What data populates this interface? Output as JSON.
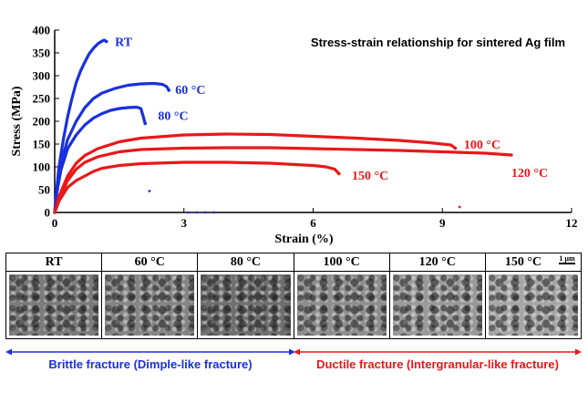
{
  "chart_data": {
    "type": "scatter",
    "title": "Stress-strain relationship for sintered Ag film",
    "xlabel": "Strain (%)",
    "ylabel": "Stress (MPa)",
    "xlim": [
      0,
      12
    ],
    "ylim": [
      0,
      400
    ],
    "xticks": [
      "0",
      "3",
      "6",
      "9",
      "12"
    ],
    "yticks": [
      "0",
      "50",
      "100",
      "150",
      "200",
      "250",
      "300",
      "350",
      "400"
    ],
    "grid": false,
    "series": [
      {
        "name": "RT",
        "color": "#1a2fe0",
        "points": [
          [
            0,
            0
          ],
          [
            0.05,
            55
          ],
          [
            0.1,
            100
          ],
          [
            0.2,
            160
          ],
          [
            0.3,
            210
          ],
          [
            0.4,
            250
          ],
          [
            0.5,
            285
          ],
          [
            0.6,
            310
          ],
          [
            0.7,
            330
          ],
          [
            0.8,
            348
          ],
          [
            0.9,
            360
          ],
          [
            1.0,
            370
          ],
          [
            1.1,
            376
          ],
          [
            1.15,
            378
          ],
          [
            1.2,
            375
          ]
        ]
      },
      {
        "name": "60 °C",
        "color": "#1a2fe0",
        "points": [
          [
            0,
            0
          ],
          [
            0.05,
            50
          ],
          [
            0.15,
            110
          ],
          [
            0.3,
            160
          ],
          [
            0.5,
            200
          ],
          [
            0.7,
            230
          ],
          [
            0.9,
            250
          ],
          [
            1.1,
            262
          ],
          [
            1.4,
            272
          ],
          [
            1.7,
            279
          ],
          [
            2.0,
            282
          ],
          [
            2.3,
            283
          ],
          [
            2.5,
            281
          ],
          [
            2.6,
            276
          ],
          [
            2.65,
            268
          ]
        ]
      },
      {
        "name": "80 °C",
        "color": "#1a2fe0",
        "points": [
          [
            0,
            0
          ],
          [
            0.05,
            45
          ],
          [
            0.15,
            95
          ],
          [
            0.3,
            140
          ],
          [
            0.5,
            170
          ],
          [
            0.7,
            192
          ],
          [
            0.9,
            207
          ],
          [
            1.1,
            217
          ],
          [
            1.3,
            224
          ],
          [
            1.5,
            228
          ],
          [
            1.7,
            230
          ],
          [
            1.9,
            231
          ],
          [
            2.0,
            228
          ],
          [
            2.05,
            212
          ],
          [
            2.1,
            195
          ]
        ]
      },
      {
        "name": "100 °C",
        "color": "#e8181a",
        "points": [
          [
            0,
            0
          ],
          [
            0.1,
            35
          ],
          [
            0.3,
            80
          ],
          [
            0.5,
            108
          ],
          [
            0.7,
            125
          ],
          [
            1.0,
            140
          ],
          [
            1.5,
            155
          ],
          [
            2.0,
            163
          ],
          [
            3.0,
            170
          ],
          [
            4.0,
            172
          ],
          [
            5.0,
            171
          ],
          [
            6.0,
            167
          ],
          [
            7.0,
            163
          ],
          [
            8.0,
            158
          ],
          [
            8.7,
            153
          ],
          [
            9.0,
            150
          ],
          [
            9.2,
            148
          ],
          [
            9.3,
            141
          ]
        ]
      },
      {
        "name": "120 °C",
        "color": "#e8181a",
        "points": [
          [
            0,
            0
          ],
          [
            0.1,
            30
          ],
          [
            0.3,
            70
          ],
          [
            0.5,
            95
          ],
          [
            0.7,
            110
          ],
          [
            1.0,
            122
          ],
          [
            1.5,
            133
          ],
          [
            2.0,
            138
          ],
          [
            3.0,
            141
          ],
          [
            4.0,
            142
          ],
          [
            5.0,
            142
          ],
          [
            6.0,
            140
          ],
          [
            7.0,
            138
          ],
          [
            8.0,
            136
          ],
          [
            9.0,
            133
          ],
          [
            10.0,
            130
          ],
          [
            10.6,
            126
          ]
        ]
      },
      {
        "name": "150 °C",
        "color": "#e8181a",
        "points": [
          [
            0,
            0
          ],
          [
            0.1,
            25
          ],
          [
            0.3,
            55
          ],
          [
            0.5,
            70
          ],
          [
            0.7,
            80
          ],
          [
            0.9,
            90
          ],
          [
            1.1,
            97
          ],
          [
            1.5,
            103
          ],
          [
            2.0,
            107
          ],
          [
            3.0,
            110
          ],
          [
            4.0,
            110
          ],
          [
            5.0,
            108
          ],
          [
            6.0,
            103
          ],
          [
            6.3,
            100
          ],
          [
            6.5,
            95
          ],
          [
            6.6,
            85
          ]
        ]
      }
    ],
    "stray_points": [
      {
        "x": 2.2,
        "y": 47,
        "color": "#1a2fe0"
      },
      {
        "x": 3.1,
        "y": 0,
        "color": "#1a2fe0"
      },
      {
        "x": 3.3,
        "y": 0,
        "color": "#1a2fe0"
      },
      {
        "x": 3.5,
        "y": 0,
        "color": "#1a2fe0"
      },
      {
        "x": 3.7,
        "y": 0,
        "color": "#1a2fe0"
      },
      {
        "x": 9.4,
        "y": 12,
        "color": "#e8181a"
      }
    ],
    "series_labels": [
      {
        "text": "RT",
        "x": 1.4,
        "y": 375,
        "color": "#1a2fe0"
      },
      {
        "text": "60 °C",
        "x": 2.8,
        "y": 270,
        "color": "#1a2fe0"
      },
      {
        "text": "80 °C",
        "x": 2.4,
        "y": 213,
        "color": "#1a2fe0"
      },
      {
        "text": "100 °C",
        "x": 9.5,
        "y": 150,
        "color": "#e8181a"
      },
      {
        "text": "120 °C",
        "x": 10.6,
        "y": 88,
        "color": "#e8181a"
      },
      {
        "text": "150 °C",
        "x": 6.9,
        "y": 82,
        "color": "#e8181a"
      }
    ]
  },
  "panels": [
    {
      "label": "RT",
      "tone": "#7b7b7b"
    },
    {
      "label": "60 °C",
      "tone": "#858585"
    },
    {
      "label": "80 °C",
      "tone": "#6f6f6f"
    },
    {
      "label": "100 °C",
      "tone": "#8e8e8e"
    },
    {
      "label": "120 °C",
      "tone": "#9a9a9a"
    },
    {
      "label": "150 °C",
      "tone": "#a6a6a6"
    }
  ],
  "scale_bar": "1 μm",
  "fracture": {
    "brittle": {
      "text": "Brittle fracture (Dimple-like fracture)",
      "color": "#1a2fe0"
    },
    "ductile": {
      "text": "Ductile fracture (Intergranular-like fracture)",
      "color": "#e8181a"
    }
  }
}
